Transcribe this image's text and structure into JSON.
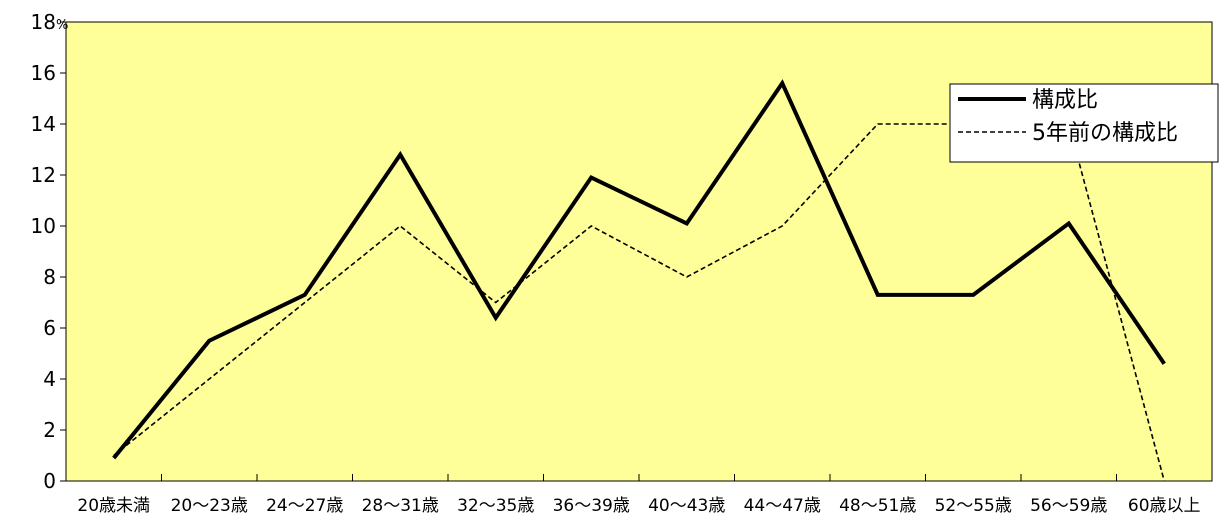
{
  "chart_data": {
    "type": "line",
    "categories": [
      "20歳未満",
      "20〜23歳",
      "24〜27歳",
      "28〜31歳",
      "32〜35歳",
      "36〜39歳",
      "40〜43歳",
      "44〜47歳",
      "48〜51歳",
      "52〜55歳",
      "56〜59歳",
      "60歳以上"
    ],
    "series": [
      {
        "name": "構成比",
        "values": [
          0.9,
          5.5,
          7.3,
          12.8,
          6.4,
          11.9,
          10.1,
          15.6,
          7.3,
          7.3,
          10.1,
          4.6
        ]
      },
      {
        "name": "5年前の構成比",
        "values": [
          1.0,
          4.0,
          7.0,
          10.0,
          7.0,
          10.0,
          8.0,
          10.0,
          14.0,
          14.0,
          14.0,
          0.0
        ]
      }
    ],
    "y_ticks": [
      "0",
      "2",
      "4",
      "6",
      "8",
      "10",
      "12",
      "14",
      "16",
      "18"
    ],
    "y_unit": "%",
    "ylim": [
      0,
      18
    ],
    "legend_position": "top-right",
    "colors": {
      "plot_bg": "#FFFF99",
      "line": "#000000"
    }
  }
}
